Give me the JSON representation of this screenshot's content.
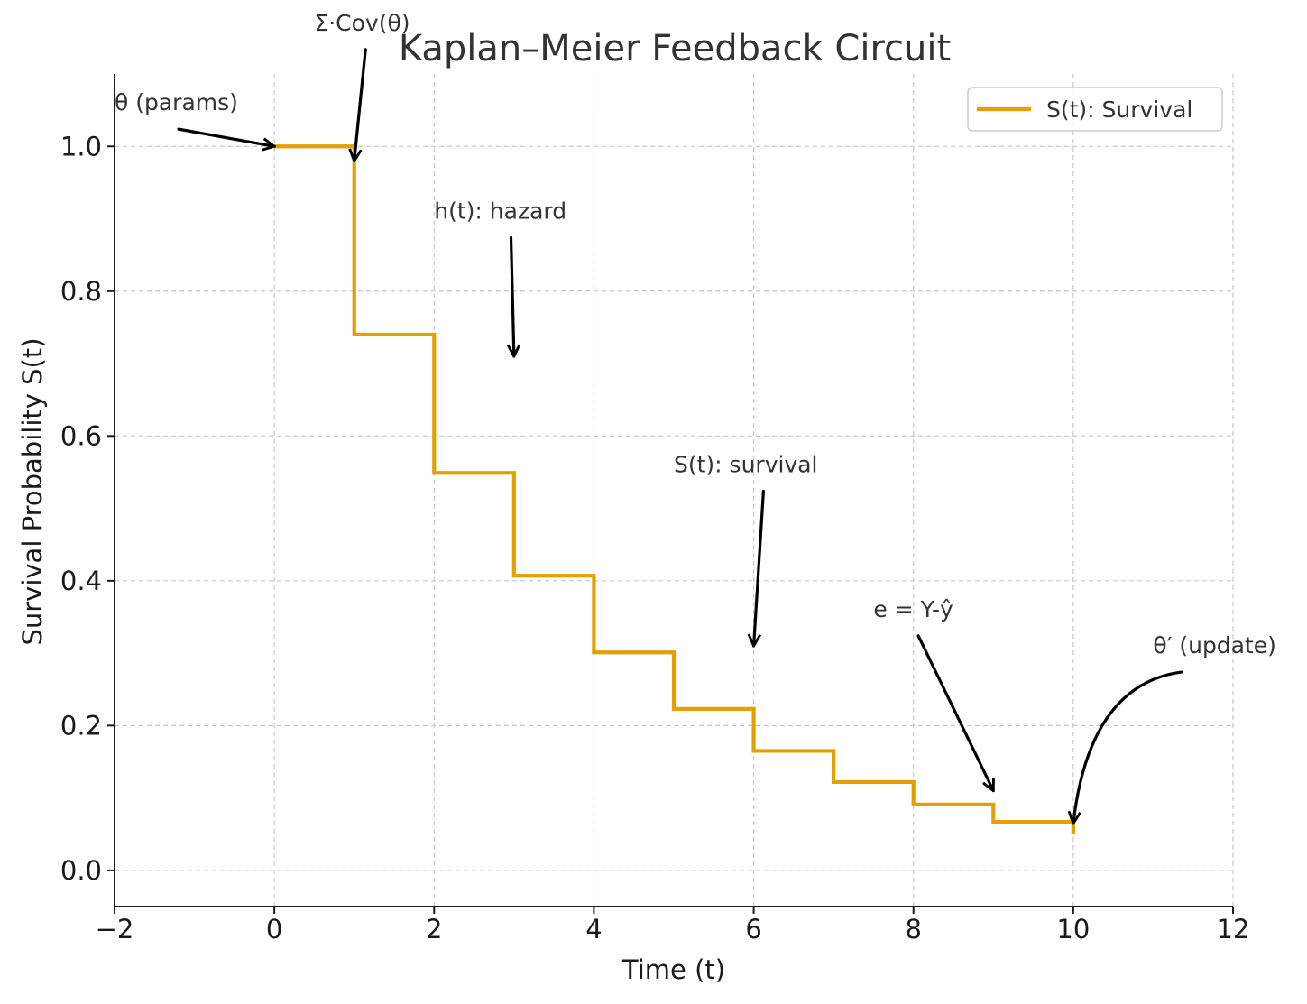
{
  "chart_data": {
    "type": "line",
    "drawstyle": "steps-post",
    "title": "Kaplan–Meier Feedback Circuit",
    "xlabel": "Time (t)",
    "ylabel": "Survival Probability S(t)",
    "xlim": [
      -2,
      12
    ],
    "ylim": [
      -0.05,
      1.1
    ],
    "xticks": [
      -2,
      0,
      2,
      4,
      6,
      8,
      10,
      12
    ],
    "xtick_labels": [
      "−2",
      "0",
      "2",
      "4",
      "6",
      "8",
      "10",
      "12"
    ],
    "yticks": [
      0.0,
      0.2,
      0.4,
      0.6,
      0.8,
      1.0
    ],
    "ytick_labels": [
      "0.0",
      "0.2",
      "0.4",
      "0.6",
      "0.8",
      "1.0"
    ],
    "grid": true,
    "legend_position": "top-right",
    "series": [
      {
        "name": "S(t): Survival",
        "color": "#e69f00",
        "x": [
          0,
          1,
          2,
          3,
          4,
          5,
          6,
          7,
          8,
          9,
          10
        ],
        "y": [
          1.0,
          0.74,
          0.549,
          0.407,
          0.301,
          0.223,
          0.165,
          0.122,
          0.091,
          0.067,
          0.05
        ]
      }
    ],
    "annotations": [
      {
        "text": "θ (params)",
        "point": [
          0,
          1.0
        ],
        "text_pos": [
          -2,
          1.05
        ],
        "curved": false
      },
      {
        "text": "Σ·Cov(θ)",
        "point": [
          1,
          0.98
        ],
        "text_pos": [
          0.5,
          1.16
        ],
        "curved": false
      },
      {
        "text": "h(t): hazard",
        "point": [
          3,
          0.71
        ],
        "text_pos": [
          2,
          0.9
        ],
        "curved": false
      },
      {
        "text": "S(t): survival",
        "point": [
          6,
          0.31
        ],
        "text_pos": [
          5,
          0.55
        ],
        "curved": false
      },
      {
        "text": "e = Y-ŷ",
        "point": [
          9,
          0.11
        ],
        "text_pos": [
          7.5,
          0.35
        ],
        "curved": false
      },
      {
        "text": "θ′ (update)",
        "point": [
          10,
          0.06
        ],
        "text_pos": [
          11,
          0.3
        ],
        "curved": true
      }
    ]
  }
}
